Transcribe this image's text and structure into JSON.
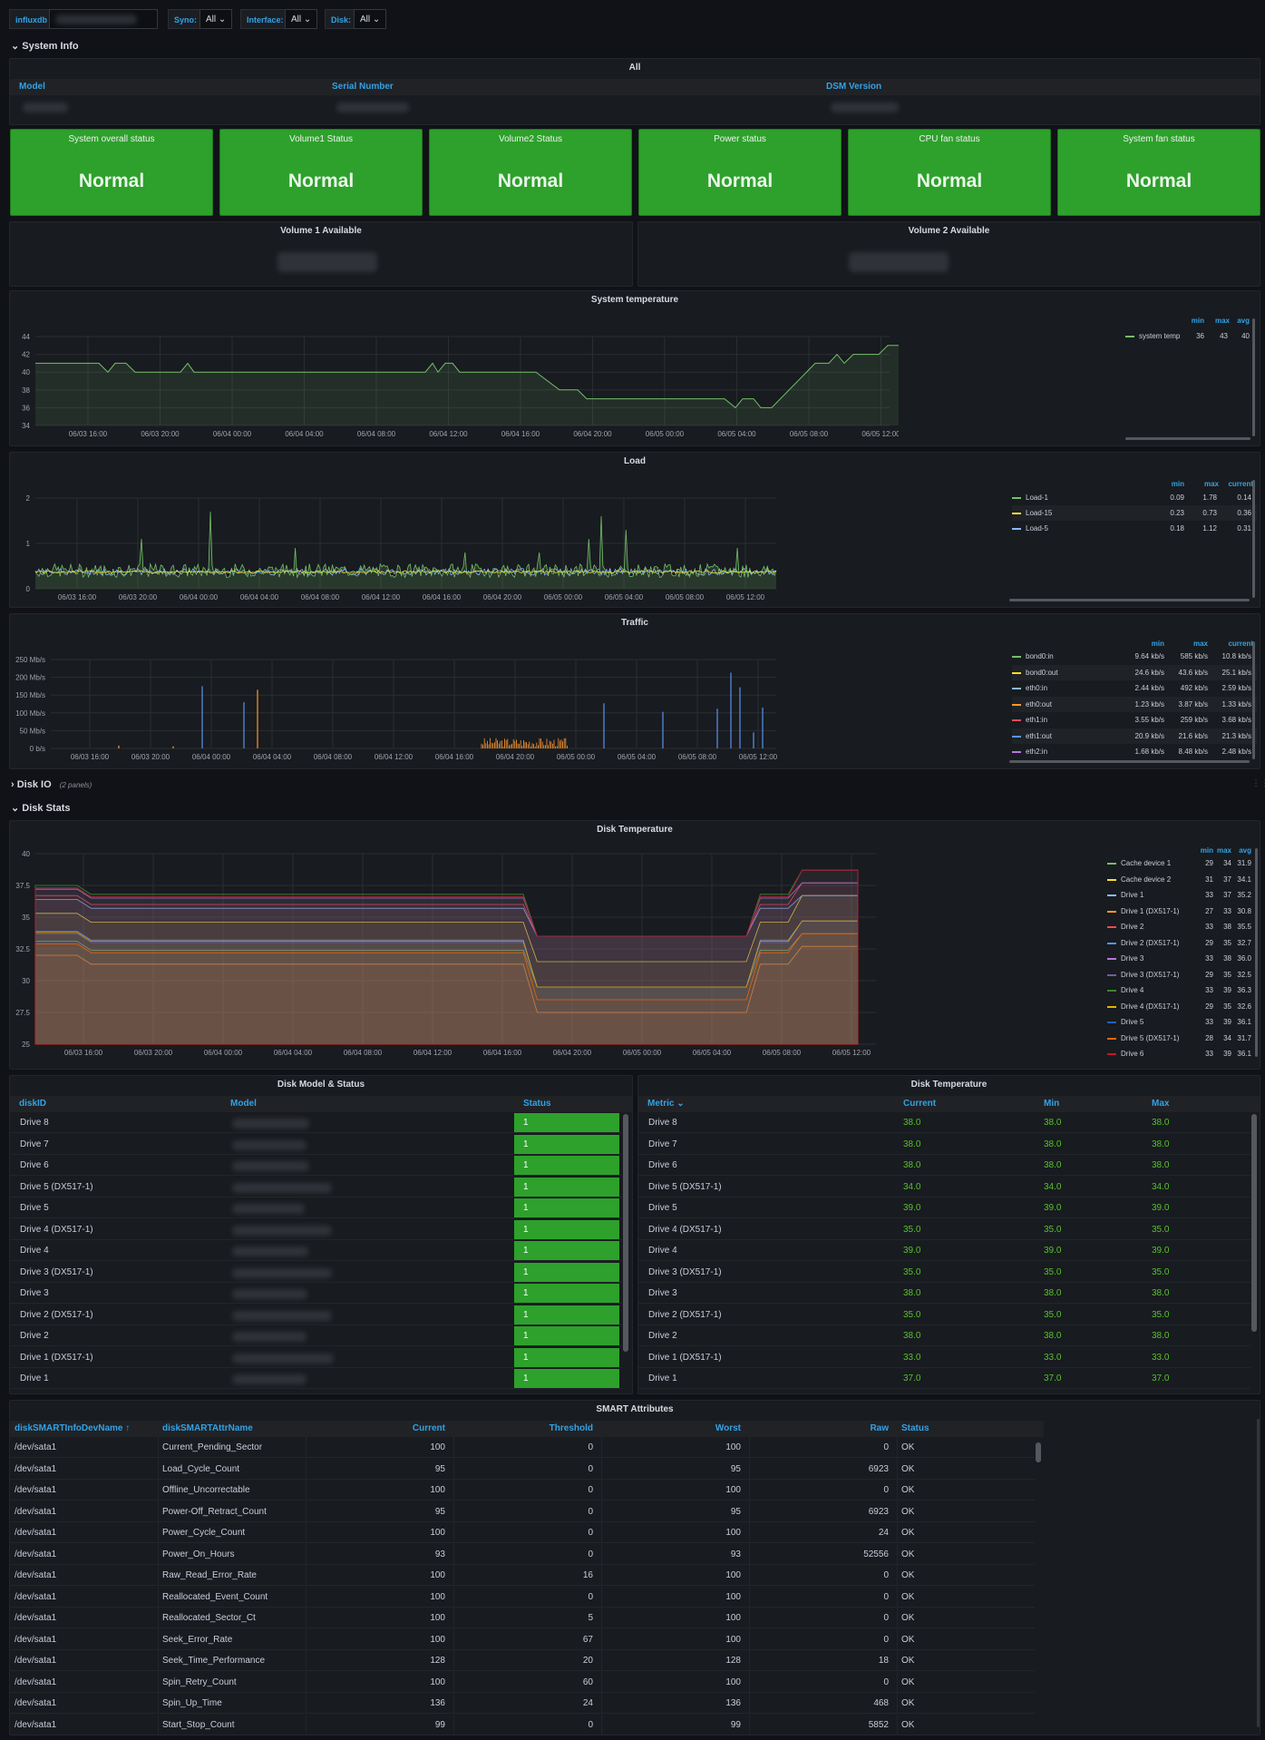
{
  "variables": {
    "datasource_label": "influxdb",
    "syno_label": "Syno:",
    "syno_value": "All",
    "interface_label": "Interface:",
    "interface_value": "All",
    "disk_label": "Disk:",
    "disk_value": "All"
  },
  "rows": {
    "system_info": "System Info",
    "disk_io": "Disk IO",
    "disk_io_count": "(2 panels)",
    "disk_stats": "Disk Stats"
  },
  "info_table": {
    "title": "All",
    "columns": [
      "Model",
      "Serial Number",
      "DSM Version"
    ]
  },
  "stats": [
    {
      "title": "System overall status",
      "value": "Normal"
    },
    {
      "title": "Volume1 Status",
      "value": "Normal"
    },
    {
      "title": "Volume2 Status",
      "value": "Normal"
    },
    {
      "title": "Power status",
      "value": "Normal"
    },
    {
      "title": "CPU fan status",
      "value": "Normal"
    },
    {
      "title": "System fan status",
      "value": "Normal"
    }
  ],
  "volumes": [
    {
      "title": "Volume 1 Available"
    },
    {
      "title": "Volume 2 Available"
    }
  ],
  "time_ticks": [
    "06/03 16:00",
    "06/03 20:00",
    "06/04 00:00",
    "06/04 04:00",
    "06/04 08:00",
    "06/04 12:00",
    "06/04 16:00",
    "06/04 20:00",
    "06/05 00:00",
    "06/05 04:00",
    "06/05 08:00",
    "06/05 12:00"
  ],
  "panels": {
    "sys_temp": {
      "title": "System temperature",
      "yticks": [
        "44",
        "42",
        "40",
        "38",
        "36",
        "34"
      ],
      "legend_headers": [
        "min",
        "max",
        "avg"
      ],
      "legend": [
        {
          "name": "system temp",
          "color": "#73bf69",
          "vals": [
            "36",
            "43",
            "40"
          ]
        }
      ]
    },
    "load": {
      "title": "Load",
      "yticks": [
        "2",
        "1",
        "0"
      ],
      "legend_headers": [
        "min",
        "max",
        "current"
      ],
      "legend": [
        {
          "name": "Load-1",
          "color": "#73bf69",
          "vals": [
            "0.09",
            "1.78",
            "0.14"
          ]
        },
        {
          "name": "Load-15",
          "color": "#fade2a",
          "vals": [
            "0.23",
            "0.73",
            "0.36"
          ]
        },
        {
          "name": "Load-5",
          "color": "#8ab8ff",
          "vals": [
            "0.18",
            "1.12",
            "0.31"
          ]
        }
      ]
    },
    "traffic": {
      "title": "Traffic",
      "yticks": [
        "250 Mb/s",
        "200 Mb/s",
        "150 Mb/s",
        "100 Mb/s",
        "50 Mb/s",
        "0 b/s"
      ],
      "legend_headers": [
        "min",
        "max",
        "current"
      ],
      "legend": [
        {
          "name": "bond0:in",
          "color": "#73bf69",
          "vals": [
            "9.64 kb/s",
            "585 kb/s",
            "10.8 kb/s"
          ]
        },
        {
          "name": "bond0:out",
          "color": "#fade2a",
          "vals": [
            "24.6 kb/s",
            "43.6 kb/s",
            "25.1 kb/s"
          ]
        },
        {
          "name": "eth0:in",
          "color": "#8ab8ff",
          "vals": [
            "2.44 kb/s",
            "492 kb/s",
            "2.59 kb/s"
          ]
        },
        {
          "name": "eth0:out",
          "color": "#ff9830",
          "vals": [
            "1.23 kb/s",
            "3.87 kb/s",
            "1.33 kb/s"
          ]
        },
        {
          "name": "eth1:in",
          "color": "#f2495c",
          "vals": [
            "3.55 kb/s",
            "259 kb/s",
            "3.68 kb/s"
          ]
        },
        {
          "name": "eth1:out",
          "color": "#5794f2",
          "vals": [
            "20.9 kb/s",
            "21.6 kb/s",
            "21.3 kb/s"
          ]
        },
        {
          "name": "eth2:in",
          "color": "#b877d9",
          "vals": [
            "1.68 kb/s",
            "8.48 kb/s",
            "2.48 kb/s"
          ]
        }
      ]
    },
    "disk_temp": {
      "title": "Disk Temperature",
      "yticks": [
        "40",
        "37.5",
        "35",
        "32.5",
        "30",
        "27.5",
        "25"
      ],
      "legend_headers": [
        "min",
        "max",
        "avg"
      ],
      "legend": [
        {
          "name": "Cache device 1",
          "color": "#73bf69",
          "vals": [
            "29",
            "34",
            "31.9"
          ]
        },
        {
          "name": "Cache device 2",
          "color": "#fade2a",
          "vals": [
            "31",
            "37",
            "34.1"
          ]
        },
        {
          "name": "Drive 1",
          "color": "#8ab8ff",
          "vals": [
            "33",
            "37",
            "35.2"
          ]
        },
        {
          "name": "Drive 1 (DX517-1)",
          "color": "#ff9830",
          "vals": [
            "27",
            "33",
            "30.8"
          ]
        },
        {
          "name": "Drive 2",
          "color": "#f2495c",
          "vals": [
            "33",
            "38",
            "35.5"
          ]
        },
        {
          "name": "Drive 2 (DX517-1)",
          "color": "#5794f2",
          "vals": [
            "29",
            "35",
            "32.7"
          ]
        },
        {
          "name": "Drive 3",
          "color": "#b877d9",
          "vals": [
            "33",
            "38",
            "36.0"
          ]
        },
        {
          "name": "Drive 3 (DX517-1)",
          "color": "#705da0",
          "vals": [
            "29",
            "35",
            "32.5"
          ]
        },
        {
          "name": "Drive 4",
          "color": "#37872d",
          "vals": [
            "33",
            "39",
            "36.3"
          ]
        },
        {
          "name": "Drive 4 (DX517-1)",
          "color": "#e0b400",
          "vals": [
            "29",
            "35",
            "32.6"
          ]
        },
        {
          "name": "Drive 5",
          "color": "#1f60c4",
          "vals": [
            "33",
            "39",
            "36.1"
          ]
        },
        {
          "name": "Drive 5 (DX517-1)",
          "color": "#fa6400",
          "vals": [
            "28",
            "34",
            "31.7"
          ]
        },
        {
          "name": "Drive 6",
          "color": "#c4162a",
          "vals": [
            "33",
            "39",
            "36.1"
          ]
        }
      ]
    }
  },
  "disk_status": {
    "title": "Disk Model & Status",
    "columns": [
      "diskID",
      "Model",
      "Status"
    ],
    "rows": [
      {
        "id": "Drive 8",
        "status": "1"
      },
      {
        "id": "Drive 7",
        "status": "1"
      },
      {
        "id": "Drive 6",
        "status": "1"
      },
      {
        "id": "Drive 5 (DX517-1)",
        "status": "1"
      },
      {
        "id": "Drive 5",
        "status": "1"
      },
      {
        "id": "Drive 4 (DX517-1)",
        "status": "1"
      },
      {
        "id": "Drive 4",
        "status": "1"
      },
      {
        "id": "Drive 3 (DX517-1)",
        "status": "1"
      },
      {
        "id": "Drive 3",
        "status": "1"
      },
      {
        "id": "Drive 2 (DX517-1)",
        "status": "1"
      },
      {
        "id": "Drive 2",
        "status": "1"
      },
      {
        "id": "Drive 1 (DX517-1)",
        "status": "1"
      },
      {
        "id": "Drive 1",
        "status": "1"
      }
    ]
  },
  "disk_temp_table": {
    "title": "Disk Temperature",
    "columns": [
      "Metric",
      "Current",
      "Min",
      "Max"
    ],
    "rows": [
      {
        "m": "Drive 8",
        "c": "38.0",
        "mn": "38.0",
        "mx": "38.0"
      },
      {
        "m": "Drive 7",
        "c": "38.0",
        "mn": "38.0",
        "mx": "38.0"
      },
      {
        "m": "Drive 6",
        "c": "38.0",
        "mn": "38.0",
        "mx": "38.0"
      },
      {
        "m": "Drive 5 (DX517-1)",
        "c": "34.0",
        "mn": "34.0",
        "mx": "34.0"
      },
      {
        "m": "Drive 5",
        "c": "39.0",
        "mn": "39.0",
        "mx": "39.0"
      },
      {
        "m": "Drive 4 (DX517-1)",
        "c": "35.0",
        "mn": "35.0",
        "mx": "35.0"
      },
      {
        "m": "Drive 4",
        "c": "39.0",
        "mn": "39.0",
        "mx": "39.0"
      },
      {
        "m": "Drive 3 (DX517-1)",
        "c": "35.0",
        "mn": "35.0",
        "mx": "35.0"
      },
      {
        "m": "Drive 3",
        "c": "38.0",
        "mn": "38.0",
        "mx": "38.0"
      },
      {
        "m": "Drive 2 (DX517-1)",
        "c": "35.0",
        "mn": "35.0",
        "mx": "35.0"
      },
      {
        "m": "Drive 2",
        "c": "38.0",
        "mn": "38.0",
        "mx": "38.0"
      },
      {
        "m": "Drive 1 (DX517-1)",
        "c": "33.0",
        "mn": "33.0",
        "mx": "33.0"
      },
      {
        "m": "Drive 1",
        "c": "37.0",
        "mn": "37.0",
        "mx": "37.0"
      }
    ]
  },
  "smart": {
    "title": "SMART Attributes",
    "columns": [
      "diskSMARTInfoDevName",
      "diskSMARTAttrName",
      "Current",
      "Threshold",
      "Worst",
      "Raw",
      "Status"
    ],
    "rows": [
      [
        "/dev/sata1",
        "Current_Pending_Sector",
        "100",
        "0",
        "100",
        "0",
        "OK"
      ],
      [
        "/dev/sata1",
        "Load_Cycle_Count",
        "95",
        "0",
        "95",
        "6923",
        "OK"
      ],
      [
        "/dev/sata1",
        "Offline_Uncorrectable",
        "100",
        "0",
        "100",
        "0",
        "OK"
      ],
      [
        "/dev/sata1",
        "Power-Off_Retract_Count",
        "95",
        "0",
        "95",
        "6923",
        "OK"
      ],
      [
        "/dev/sata1",
        "Power_Cycle_Count",
        "100",
        "0",
        "100",
        "24",
        "OK"
      ],
      [
        "/dev/sata1",
        "Power_On_Hours",
        "93",
        "0",
        "93",
        "52556",
        "OK"
      ],
      [
        "/dev/sata1",
        "Raw_Read_Error_Rate",
        "100",
        "16",
        "100",
        "0",
        "OK"
      ],
      [
        "/dev/sata1",
        "Reallocated_Event_Count",
        "100",
        "0",
        "100",
        "0",
        "OK"
      ],
      [
        "/dev/sata1",
        "Reallocated_Sector_Ct",
        "100",
        "5",
        "100",
        "0",
        "OK"
      ],
      [
        "/dev/sata1",
        "Seek_Error_Rate",
        "100",
        "67",
        "100",
        "0",
        "OK"
      ],
      [
        "/dev/sata1",
        "Seek_Time_Performance",
        "128",
        "20",
        "128",
        "18",
        "OK"
      ],
      [
        "/dev/sata1",
        "Spin_Retry_Count",
        "100",
        "60",
        "100",
        "0",
        "OK"
      ],
      [
        "/dev/sata1",
        "Spin_Up_Time",
        "136",
        "24",
        "136",
        "468",
        "OK"
      ],
      [
        "/dev/sata1",
        "Start_Stop_Count",
        "99",
        "0",
        "99",
        "5852",
        "OK"
      ]
    ]
  }
}
